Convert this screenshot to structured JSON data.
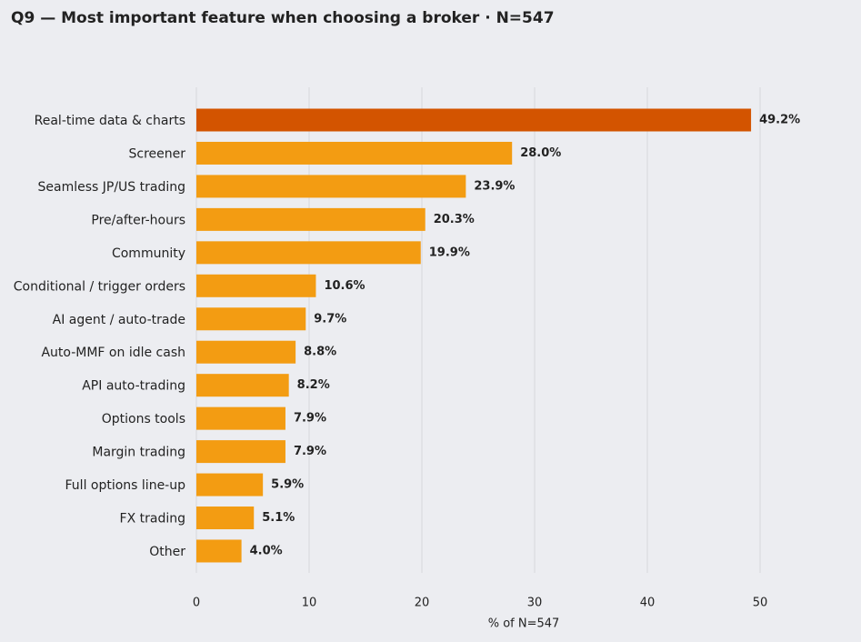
{
  "chart_data": {
    "type": "bar",
    "orientation": "horizontal",
    "title": "Q9 — Most important feature when choosing a broker  ·  N=547",
    "x_label": "% of N=547",
    "categories": [
      "Real-time data & charts",
      "Screener",
      "Seamless JP/US trading",
      "Pre/after-hours",
      "Community",
      "Conditional / trigger orders",
      "AI agent / auto-trade",
      "Auto-MMF on idle cash",
      "API auto-trading",
      "Options tools",
      "Margin trading",
      "Full options line-up",
      "FX trading",
      "Other"
    ],
    "values": [
      49.2,
      28.0,
      23.9,
      20.3,
      19.9,
      10.6,
      9.7,
      8.8,
      8.2,
      7.9,
      7.9,
      5.9,
      5.1,
      4.0
    ],
    "value_labels": [
      "49.2%",
      "28.0%",
      "23.9%",
      "20.3%",
      "19.9%",
      "10.6%",
      "9.7%",
      "8.8%",
      "8.2%",
      "7.9%",
      "7.9%",
      "5.9%",
      "5.1%",
      "4.0%"
    ],
    "colors": [
      "#d35400",
      "#f39c12",
      "#f39c12",
      "#f39c12",
      "#f39c12",
      "#f39c12",
      "#f39c12",
      "#f39c12",
      "#f39c12",
      "#f39c12",
      "#f39c12",
      "#f39c12",
      "#f39c12",
      "#f39c12"
    ],
    "xlim": [
      0,
      54
    ],
    "xticks": [
      0,
      10,
      20,
      30,
      40,
      50
    ],
    "grid": true
  }
}
